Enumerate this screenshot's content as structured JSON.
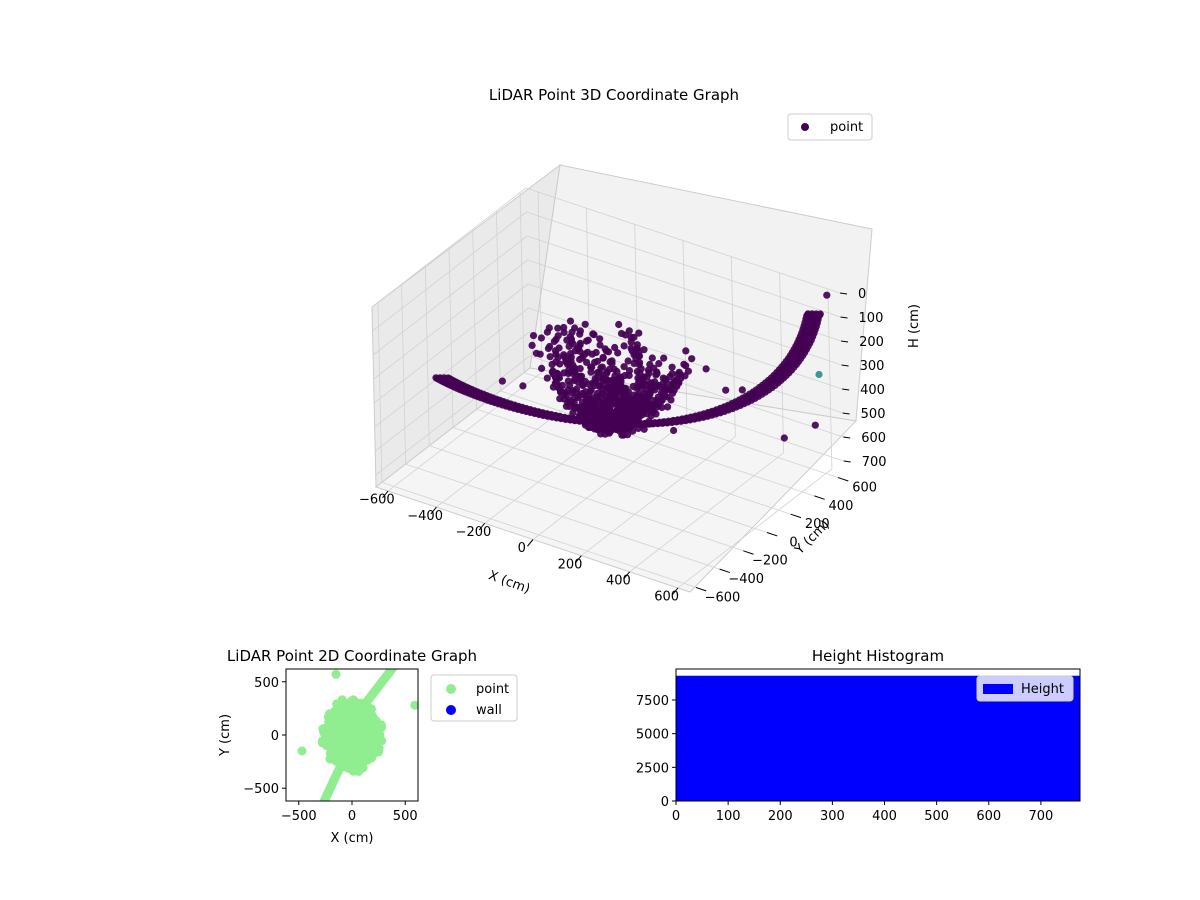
{
  "chart_data": [
    {
      "type": "scatter",
      "projection": "3d",
      "title": "LiDAR Point 3D Coordinate Graph",
      "xlabel": "X (cm)",
      "ylabel": "Y (cm)",
      "zlabel": "H (cm)",
      "xlim": [
        -650,
        650
      ],
      "ylim": [
        -650,
        650
      ],
      "zlim": [
        750,
        0
      ],
      "zaxis_inverted": true,
      "xticks": [
        -600,
        -400,
        -200,
        0,
        200,
        400,
        600
      ],
      "yticks": [
        -600,
        -400,
        -200,
        0,
        200,
        400,
        600
      ],
      "zticks": [
        0,
        100,
        200,
        300,
        400,
        500,
        600,
        700
      ],
      "grid": true,
      "legend": {
        "position": "upper-right",
        "entries": [
          "point"
        ]
      },
      "series": [
        {
          "name": "point",
          "color": "#440154",
          "highlight_color": "#2f8f8f",
          "description_shape": "bowl-shaped arcs of points around origin and long sweeping arc from low-left to high-right"
        }
      ]
    },
    {
      "type": "scatter",
      "title": "LiDAR Point 2D Coordinate Graph",
      "xlabel": "X (cm)",
      "ylabel": "Y (cm)",
      "xlim": [
        -620,
        620
      ],
      "ylim": [
        -620,
        620
      ],
      "xticks": [
        -500,
        0,
        500
      ],
      "yticks": [
        -500,
        0,
        500
      ],
      "legend": {
        "position": "outside-right",
        "entries": [
          "point",
          "wall"
        ]
      },
      "series": [
        {
          "name": "point",
          "color": "#90ee90"
        },
        {
          "name": "wall",
          "color": "#0000ff"
        }
      ]
    },
    {
      "type": "bar",
      "title": "Height Histogram",
      "xlim": [
        0,
        775
      ],
      "ylim": [
        0,
        9800
      ],
      "xticks": [
        0,
        100,
        200,
        300,
        400,
        500,
        600,
        700
      ],
      "yticks": [
        0,
        2500,
        5000,
        7500
      ],
      "legend": {
        "position": "upper-right",
        "entries": [
          "Height"
        ]
      },
      "series": [
        {
          "name": "Height",
          "color": "#0000ff",
          "bin_range": [
            0,
            775
          ],
          "value": 9300
        }
      ]
    }
  ]
}
